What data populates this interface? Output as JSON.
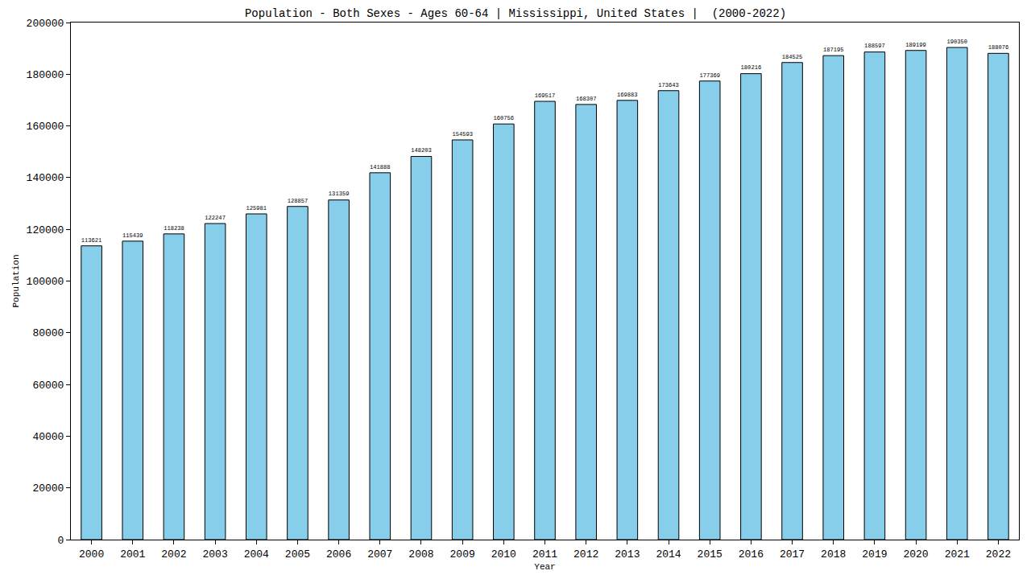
{
  "chart_data": {
    "type": "bar",
    "title": "Population - Both Sexes - Ages 60-64 | Mississippi, United States |  (2000-2022)",
    "x_label": "Year",
    "y_label": "Population",
    "categories": [
      "2000",
      "2001",
      "2002",
      "2003",
      "2004",
      "2005",
      "2006",
      "2007",
      "2008",
      "2009",
      "2010",
      "2011",
      "2012",
      "2013",
      "2014",
      "2015",
      "2016",
      "2017",
      "2018",
      "2019",
      "2020",
      "2021",
      "2022"
    ],
    "values": [
      113621,
      115439,
      118238,
      122247,
      125981,
      128857,
      131359,
      141888,
      148203,
      154593,
      160756,
      169517,
      168307,
      169883,
      173643,
      177369,
      180216,
      184525,
      187195,
      188597,
      189199,
      190350,
      188076
    ],
    "color": "#87ceeb",
    "ylim": [
      0,
      200000
    ],
    "yticks": [
      0,
      20000,
      40000,
      60000,
      80000,
      100000,
      120000,
      140000,
      160000,
      180000,
      200000
    ],
    "grid": false,
    "data_labels": true
  }
}
